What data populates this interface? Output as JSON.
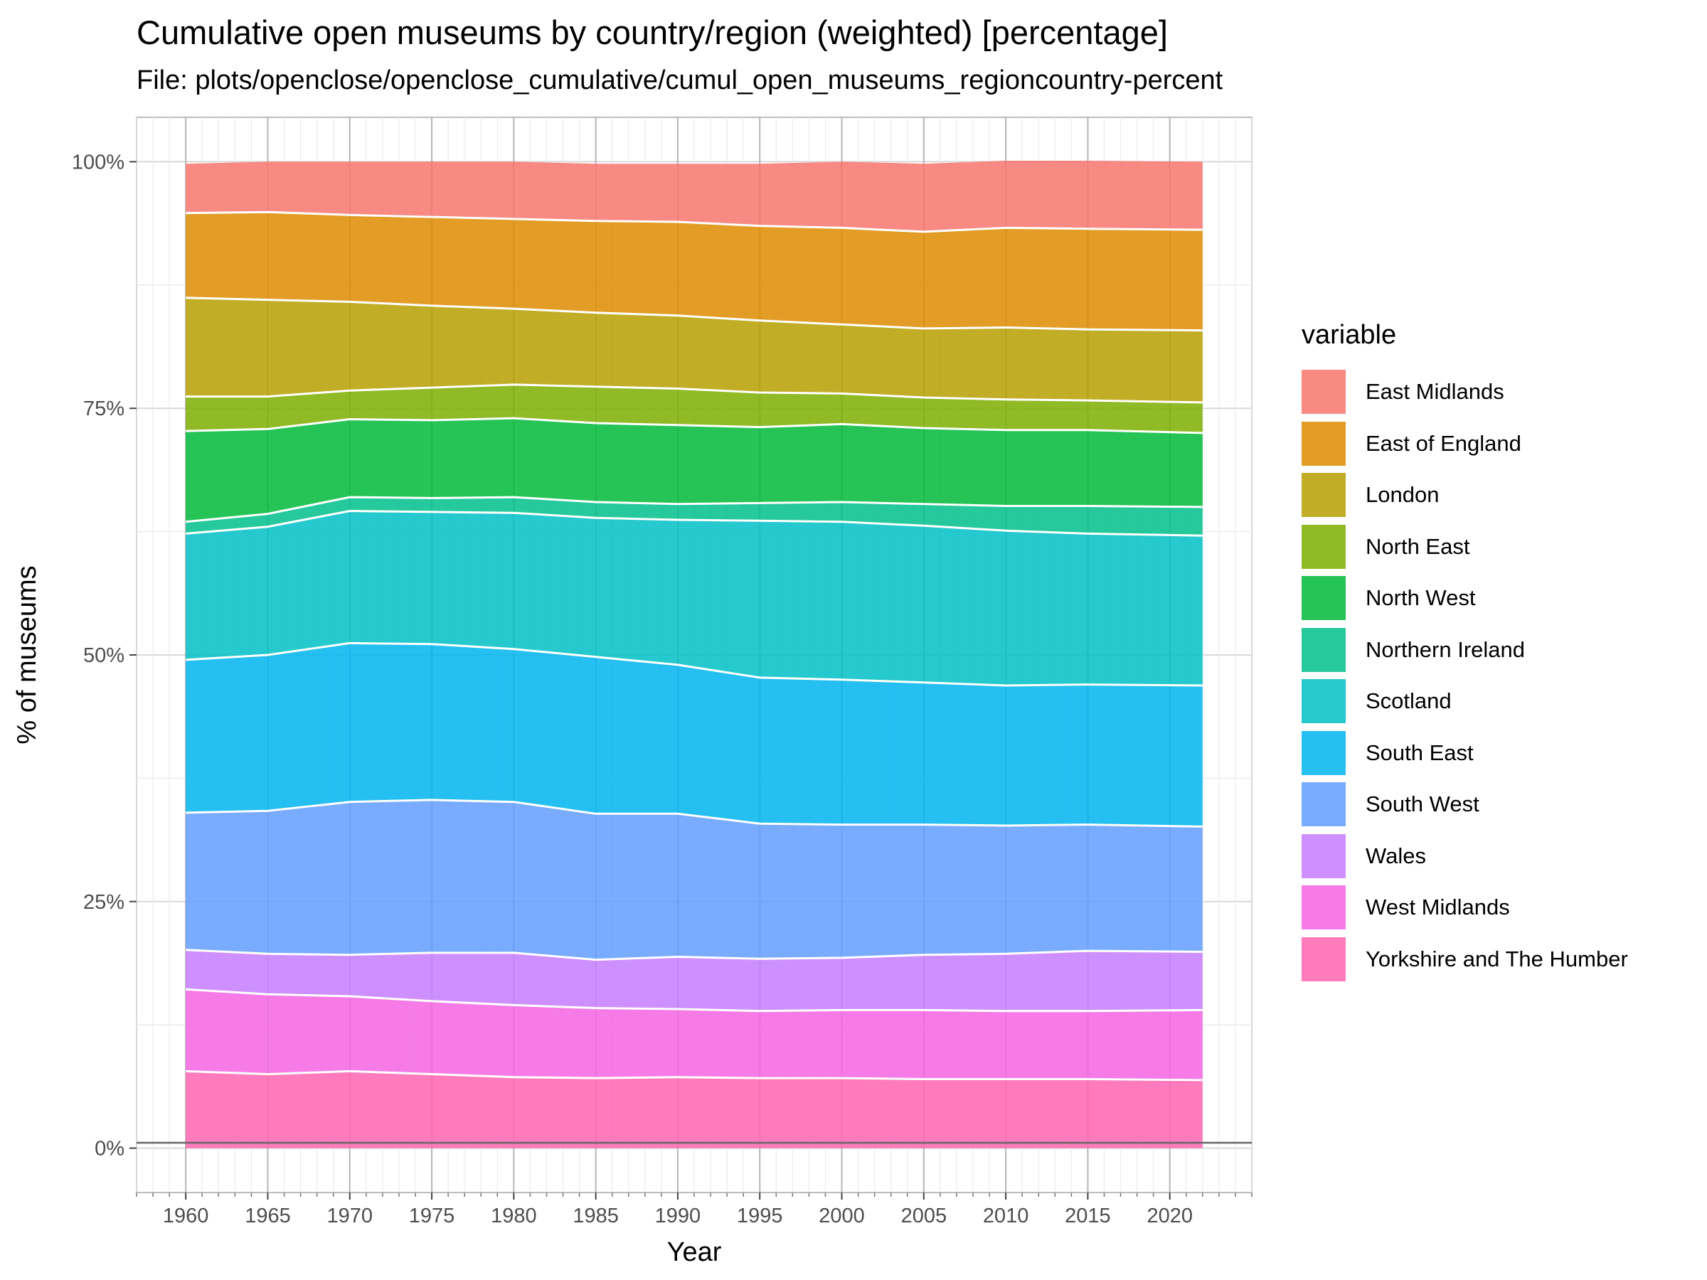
{
  "chart_data": {
    "type": "area",
    "title": "Cumulative open museums by country/region (weighted) [percentage]",
    "subtitle": "File: plots/openclose/openclose_cumulative/cumul_open_museums_regioncountry-percent",
    "xlabel": "Year",
    "ylabel": "% of museums",
    "xlim": [
      1957,
      2025
    ],
    "ylim": [
      -4.5,
      104.5
    ],
    "x_ticks": [
      1960,
      1965,
      1970,
      1975,
      1980,
      1985,
      1990,
      1995,
      2000,
      2005,
      2010,
      2015,
      2020
    ],
    "y_ticks": [
      0,
      25,
      50,
      75,
      100
    ],
    "y_tick_labels": [
      "0%",
      "25%",
      "50%",
      "75%",
      "100%"
    ],
    "stacked": true,
    "grid": true,
    "legend_title": "variable",
    "legend_position": "right",
    "x": [
      1960,
      1965,
      1970,
      1975,
      1980,
      1985,
      1990,
      1995,
      2000,
      2005,
      2010,
      2015,
      2022
    ],
    "series": [
      {
        "name": "East Midlands",
        "color": "#F8766D",
        "values": [
          5.0,
          5.1,
          5.4,
          5.6,
          5.8,
          5.8,
          5.9,
          6.3,
          6.7,
          6.9,
          6.8,
          6.9,
          6.9
        ]
      },
      {
        "name": "East of England",
        "color": "#DE8C00",
        "values": [
          8.6,
          8.9,
          8.8,
          9.0,
          9.1,
          9.3,
          9.5,
          9.6,
          9.8,
          9.8,
          10.1,
          10.2,
          10.2
        ]
      },
      {
        "name": "London",
        "color": "#B79F00",
        "values": [
          10.0,
          9.8,
          9.0,
          8.3,
          7.7,
          7.5,
          7.4,
          7.3,
          7.0,
          7.0,
          7.3,
          7.2,
          7.3
        ]
      },
      {
        "name": "North East",
        "color": "#7CAE00",
        "values": [
          3.5,
          3.3,
          2.9,
          3.3,
          3.4,
          3.7,
          3.7,
          3.5,
          3.1,
          3.1,
          3.1,
          3.0,
          3.1
        ]
      },
      {
        "name": "North West",
        "color": "#00BA38",
        "values": [
          9.2,
          8.6,
          7.9,
          7.9,
          8.0,
          8.0,
          8.0,
          7.7,
          7.9,
          7.7,
          7.7,
          7.7,
          7.5
        ]
      },
      {
        "name": "Northern Ireland",
        "color": "#00C08B",
        "values": [
          1.2,
          1.3,
          1.4,
          1.4,
          1.6,
          1.6,
          1.6,
          1.8,
          2.0,
          2.2,
          2.5,
          2.8,
          2.9
        ]
      },
      {
        "name": "Scotland",
        "color": "#00BFC4",
        "values": [
          12.8,
          13.0,
          13.4,
          13.4,
          13.8,
          14.1,
          14.7,
          15.9,
          16.0,
          15.9,
          15.7,
          15.3,
          15.2
        ]
      },
      {
        "name": "South East",
        "color": "#00B4F0",
        "values": [
          15.5,
          15.8,
          16.1,
          15.8,
          15.5,
          15.9,
          15.1,
          14.8,
          14.7,
          14.4,
          14.2,
          14.2,
          14.3
        ]
      },
      {
        "name": "South West",
        "color": "#619CFF",
        "values": [
          13.9,
          14.5,
          15.5,
          15.5,
          15.3,
          14.8,
          14.5,
          13.7,
          13.5,
          13.2,
          13.0,
          12.8,
          12.7
        ]
      },
      {
        "name": "Wales",
        "color": "#C77CFF",
        "values": [
          4.0,
          4.1,
          4.2,
          4.9,
          5.3,
          4.9,
          5.3,
          5.3,
          5.3,
          5.6,
          5.8,
          6.1,
          5.9
        ]
      },
      {
        "name": "West Midlands",
        "color": "#F564E3",
        "values": [
          8.3,
          8.1,
          7.6,
          7.4,
          7.3,
          7.1,
          6.9,
          6.8,
          6.9,
          7.0,
          6.9,
          6.9,
          7.1
        ]
      },
      {
        "name": "Yorkshire and The Humber",
        "color": "#FF64B0",
        "values": [
          7.8,
          7.5,
          7.8,
          7.5,
          7.2,
          7.1,
          7.2,
          7.1,
          7.1,
          7.0,
          7.0,
          7.0,
          6.9
        ]
      }
    ]
  }
}
